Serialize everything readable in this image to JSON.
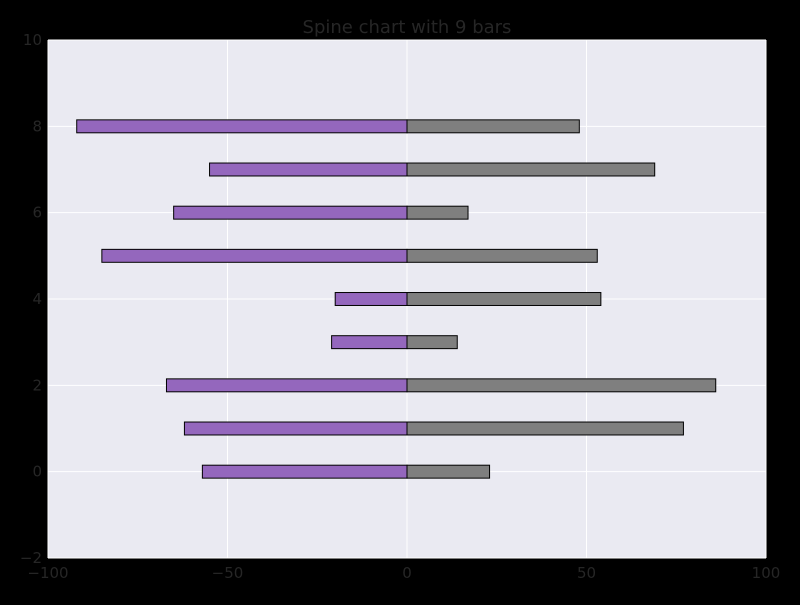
{
  "chart_data": {
    "type": "bar",
    "orientation": "horizontal",
    "title": "Spine chart with 9 bars",
    "xlabel": "",
    "ylabel": "",
    "xlim": [
      -100,
      100
    ],
    "ylim": [
      -2,
      10
    ],
    "xticks": [
      -100,
      -50,
      0,
      50,
      100
    ],
    "yticks": [
      -2,
      0,
      2,
      4,
      6,
      8,
      10
    ],
    "grid": true,
    "colors": {
      "figure_background": "#000000",
      "plot_background": "#eaeaf2",
      "grid": "#ffffff",
      "negative": "#9467bd",
      "positive": "#7f7f7f",
      "bar_edge": "#000000",
      "text": "#262626"
    },
    "y": [
      0,
      1,
      2,
      3,
      4,
      5,
      6,
      7,
      8
    ],
    "series": [
      {
        "color": "#9467bd",
        "values": [
          -57,
          -62,
          -67,
          -21,
          -20,
          -85,
          -65,
          -55,
          -92
        ]
      },
      {
        "color": "#7f7f7f",
        "values": [
          23,
          77,
          86,
          14,
          54,
          53,
          17,
          69,
          48
        ]
      }
    ]
  }
}
